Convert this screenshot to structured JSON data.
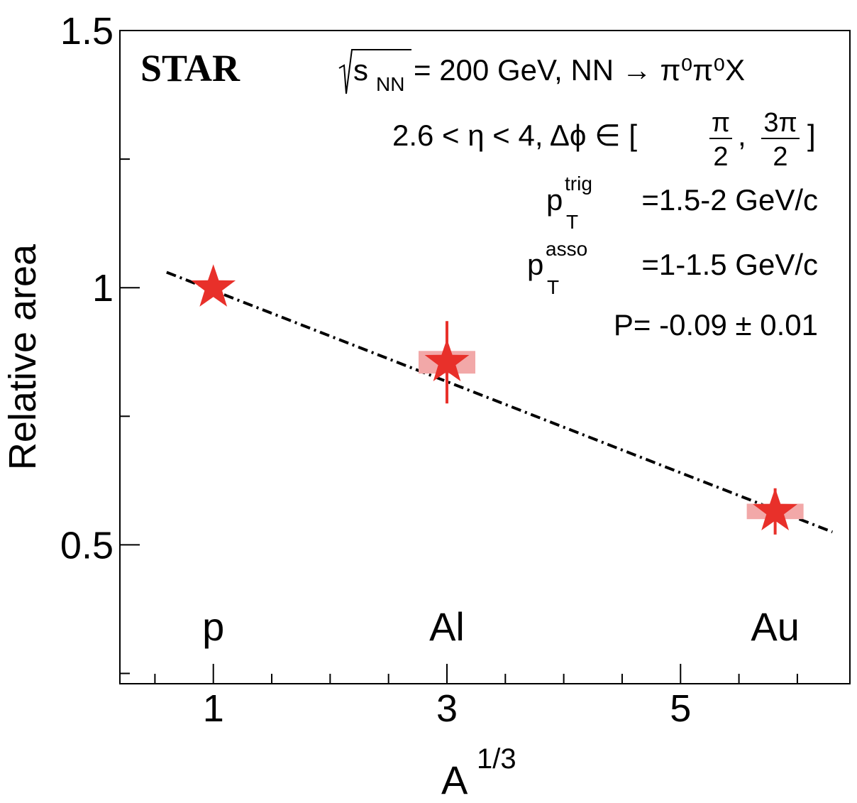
{
  "chart_data": {
    "type": "scatter",
    "experiment_label": "STAR",
    "annotations": {
      "energy": {
        "sqrt_symbol": "√",
        "s": "s",
        "s_sub": "NN",
        "rest": " = 200 GeV, NN → π⁰π⁰X"
      },
      "kinematics": {
        "range": "2.6 < η < 4, Δϕ ∈ [",
        "frac1_num": "π",
        "frac1_den": "2",
        "sep": ",",
        "frac2_num": "3π",
        "frac2_den": "2",
        "close": "]"
      },
      "ptrig": {
        "p": "p",
        "sup": "trig",
        "sub": "T",
        "rest": "=1.5-2 GeV/c"
      },
      "passo": {
        "p": "p",
        "sup": "asso",
        "sub": "T",
        "rest": "=1-1.5 GeV/c"
      },
      "fit": "P= -0.09 ± 0.01"
    },
    "xlabel": {
      "base": "A",
      "sup": "1/3"
    },
    "ylabel": "Relative area",
    "xlim": [
      0.2,
      6.45
    ],
    "ylim": [
      0.23,
      1.5
    ],
    "xticks": [
      {
        "value": 1,
        "label": "1"
      },
      {
        "value": 3,
        "label": "3"
      },
      {
        "value": 5,
        "label": "5"
      }
    ],
    "xticks_minor": [
      0.5,
      1.5,
      2,
      2.5,
      3.5,
      4,
      4.5,
      5.5,
      6
    ],
    "yticks": [
      {
        "value": 0.5,
        "label": "0.5"
      },
      {
        "value": 1,
        "label": "1"
      },
      {
        "value": 1.5,
        "label": "1.5"
      }
    ],
    "yticks_minor": [
      0.25,
      0.75,
      1.25
    ],
    "series": [
      {
        "color": "#e8302a",
        "syst_color": "#f2a8a8",
        "marker": "star",
        "points": [
          {
            "x": 1.0,
            "y": 1.0,
            "stat_err": 0.0,
            "syst_err": 0.0,
            "label": "p"
          },
          {
            "x": 3.0,
            "y": 0.855,
            "stat_err": 0.08,
            "syst_err": 0.022,
            "label": "Al"
          },
          {
            "x": 5.81,
            "y": 0.565,
            "stat_err": 0.045,
            "syst_err": 0.015,
            "label": "Au"
          }
        ]
      }
    ],
    "fit_line": {
      "style": "dash-dot",
      "color": "#000000",
      "x": [
        0.6,
        6.3
      ],
      "y": [
        1.03,
        0.525
      ]
    }
  }
}
